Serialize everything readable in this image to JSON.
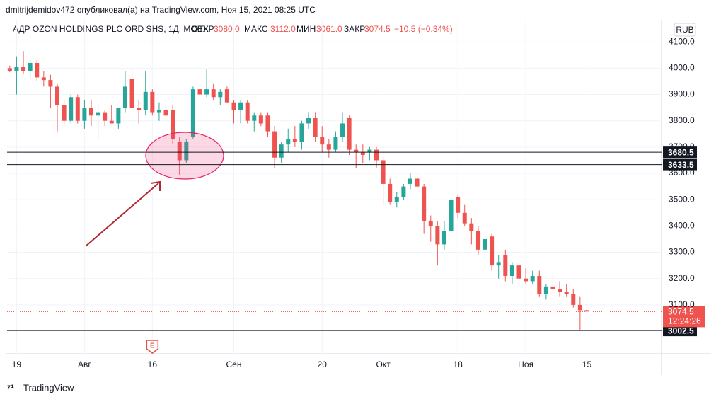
{
  "header": {
    "author_line": "dmitrijdemidov472 опубликовал(а) на TradingView.com, Ноя 15, 2021 08:25 UTC",
    "symbol": "АДР OZON HOLDINGS PLC ORD SHS, 1Д, MOEX",
    "open_label": "ОТКР",
    "open": "3080.0",
    "high_label": "МАКС",
    "high": "3112.0",
    "low_label": "МИН",
    "low": "3061.0",
    "close_label": "ЗАКР",
    "close": "3074.5",
    "change": "−10.5 (−0.34%)",
    "currency": "RUB"
  },
  "footer": {
    "brand": "TradingView"
  },
  "chart_data": {
    "type": "candlestick",
    "up_color": "#26a69a",
    "down_color": "#ef5350",
    "open": [
      4000,
      3990,
      4005,
      3990,
      4020,
      3965,
      3955,
      3930,
      3860,
      3800,
      3890,
      3800,
      3850,
      3820,
      3830,
      3800,
      3790,
      3850,
      3960,
      3850,
      3840,
      3910,
      3830,
      3840,
      3840,
      3720,
      3650,
      3740,
      3920,
      3900,
      3920,
      3890,
      3920,
      3870,
      3840,
      3870,
      3800,
      3820,
      3820,
      3760,
      3660,
      3710,
      3730,
      3720,
      3790,
      3810,
      3740,
      3710,
      3690,
      3740,
      3810,
      3690,
      3680,
      3680,
      3690,
      3650,
      3560,
      3490,
      3510,
      3560,
      3580,
      3550,
      3420,
      3400,
      3330,
      3380,
      3510,
      3450,
      3410,
      3380,
      3310,
      3360,
      3250,
      3290,
      3210,
      3250,
      3200,
      3190,
      3210,
      3140,
      3170,
      3160,
      3150,
      3140,
      3100,
      3080
    ],
    "high": [
      4010,
      4045,
      4065,
      4030,
      4030,
      3990,
      3975,
      3940,
      3880,
      3900,
      3900,
      3880,
      3880,
      3860,
      3840,
      3860,
      3850,
      3990,
      4000,
      3880,
      3990,
      3920,
      3870,
      3860,
      3860,
      3740,
      3730,
      3930,
      3940,
      3995,
      3940,
      3920,
      3930,
      3880,
      3880,
      3880,
      3830,
      3830,
      3830,
      3780,
      3720,
      3770,
      3780,
      3800,
      3830,
      3830,
      3780,
      3730,
      3760,
      3830,
      3820,
      3710,
      3710,
      3700,
      3700,
      3660,
      3580,
      3530,
      3560,
      3600,
      3600,
      3560,
      3440,
      3420,
      3420,
      3510,
      3520,
      3480,
      3430,
      3400,
      3380,
      3370,
      3290,
      3310,
      3260,
      3290,
      3240,
      3230,
      3230,
      3180,
      3230,
      3190,
      3180,
      3160,
      3130,
      3112
    ],
    "low": [
      3985,
      3900,
      3980,
      3960,
      3950,
      3930,
      3850,
      3760,
      3780,
      3790,
      3790,
      3770,
      3780,
      3730,
      3780,
      3790,
      3770,
      3830,
      3840,
      3790,
      3820,
      3820,
      3800,
      3780,
      3710,
      3595,
      3640,
      3730,
      3880,
      3890,
      3880,
      3860,
      3870,
      3790,
      3790,
      3790,
      3760,
      3780,
      3740,
      3620,
      3640,
      3680,
      3700,
      3690,
      3770,
      3720,
      3680,
      3660,
      3680,
      3720,
      3670,
      3620,
      3640,
      3650,
      3620,
      3480,
      3480,
      3470,
      3500,
      3540,
      3530,
      3370,
      3340,
      3250,
      3310,
      3370,
      3430,
      3400,
      3330,
      3290,
      3300,
      3230,
      3200,
      3190,
      3180,
      3190,
      3180,
      3180,
      3130,
      3120,
      3140,
      3130,
      3130,
      3090,
      3002.5,
      3061
    ],
    "close": [
      3990,
      4005,
      3990,
      4020,
      3965,
      3955,
      3930,
      3860,
      3800,
      3890,
      3800,
      3850,
      3820,
      3830,
      3800,
      3790,
      3850,
      3930,
      3850,
      3840,
      3910,
      3830,
      3840,
      3820,
      3730,
      3650,
      3720,
      3920,
      3900,
      3920,
      3890,
      3910,
      3870,
      3840,
      3870,
      3800,
      3820,
      3790,
      3760,
      3660,
      3710,
      3730,
      3720,
      3790,
      3810,
      3740,
      3710,
      3690,
      3740,
      3790,
      3690,
      3680,
      3670,
      3690,
      3650,
      3560,
      3490,
      3510,
      3550,
      3580,
      3550,
      3420,
      3400,
      3330,
      3380,
      3500,
      3450,
      3410,
      3380,
      3310,
      3350,
      3250,
      3260,
      3210,
      3250,
      3200,
      3190,
      3210,
      3140,
      3170,
      3160,
      3150,
      3140,
      3100,
      3080,
      3074.5
    ],
    "xlim": [
      -0.4,
      96
    ],
    "xticks": [
      {
        "value": 1,
        "label": "19"
      },
      {
        "value": 11,
        "label": "Авг"
      },
      {
        "value": 21,
        "label": "16"
      },
      {
        "value": 33,
        "label": "Сен"
      },
      {
        "value": 46,
        "label": "20"
      },
      {
        "value": 55,
        "label": "Окт"
      },
      {
        "value": 66,
        "label": "18"
      },
      {
        "value": 76,
        "label": "Ноя"
      },
      {
        "value": 85,
        "label": "15"
      }
    ],
    "ylim": [
      2914,
      4184
    ],
    "yticks": [
      {
        "value": 3100,
        "label": "3100.0"
      },
      {
        "value": 3200,
        "label": "3200.0"
      },
      {
        "value": 3300,
        "label": "3300.0"
      },
      {
        "value": 3400,
        "label": "3400.0"
      },
      {
        "value": 3500,
        "label": "3500.0"
      },
      {
        "value": 3600,
        "label": "3600.0"
      },
      {
        "value": 3700,
        "label": "3700.0"
      },
      {
        "value": 3800,
        "label": "3800.0"
      },
      {
        "value": 3900,
        "label": "3900.0"
      },
      {
        "value": 4000,
        "label": "4000.0"
      },
      {
        "value": 4100,
        "label": "4100.0"
      }
    ],
    "grid": true,
    "levels": [
      3680.5,
      3633.5,
      3002.5
    ],
    "last_price": 3074.5,
    "countdown": "12:24:26",
    "earnings_marker": {
      "index": 21,
      "label": "E"
    }
  }
}
